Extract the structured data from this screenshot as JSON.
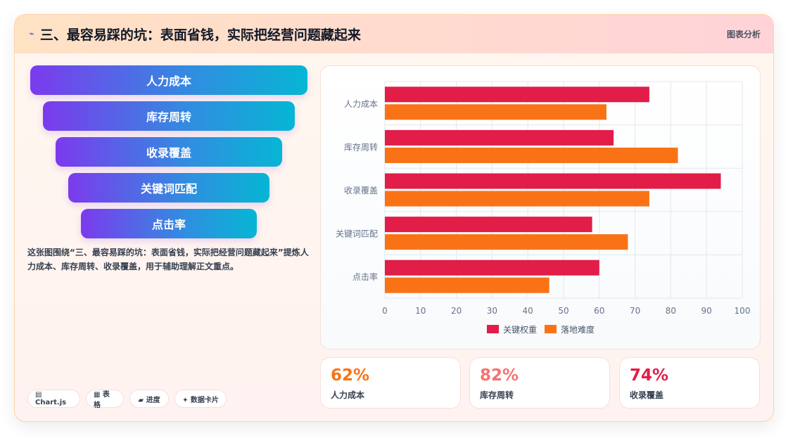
{
  "header": {
    "icon": "⌁",
    "title": "三、最容易踩的坑：表面省钱，实际把经营问题藏起来",
    "tag": "图表分析"
  },
  "funnel": [
    "人力成本",
    "库存周转",
    "收录覆盖",
    "关键词匹配",
    "点击率"
  ],
  "description": "这张图围绕“三、最容易踩的坑：表面省钱，实际把经营问题藏起来”提炼人力成本、库存周转、收录覆盖，用于辅助理解正文重点。",
  "chips": [
    "▤ Chart.js",
    "▦ 表格",
    "▰ 进度",
    "✦ 数据卡片"
  ],
  "chart_data": {
    "type": "bar",
    "orientation": "horizontal",
    "categories": [
      "人力成本",
      "库存周转",
      "收录覆盖",
      "关键词匹配",
      "点击率"
    ],
    "series": [
      {
        "name": "关键权重",
        "color": "#e11d48",
        "values": [
          74,
          64,
          94,
          58,
          60
        ]
      },
      {
        "name": "落地难度",
        "color": "#f97316",
        "values": [
          62,
          82,
          74,
          68,
          46
        ]
      }
    ],
    "xlim": [
      0,
      100
    ],
    "xticks": [
      0,
      10,
      20,
      30,
      40,
      50,
      60,
      70,
      80,
      90,
      100
    ],
    "grid": true,
    "legend": "bottom"
  },
  "stats": [
    {
      "value": "62%",
      "label": "人力成本",
      "color": "#f97316"
    },
    {
      "value": "82%",
      "label": "库存周转",
      "color": "#f87171"
    },
    {
      "value": "74%",
      "label": "收录覆盖",
      "color": "#e11d48"
    }
  ]
}
